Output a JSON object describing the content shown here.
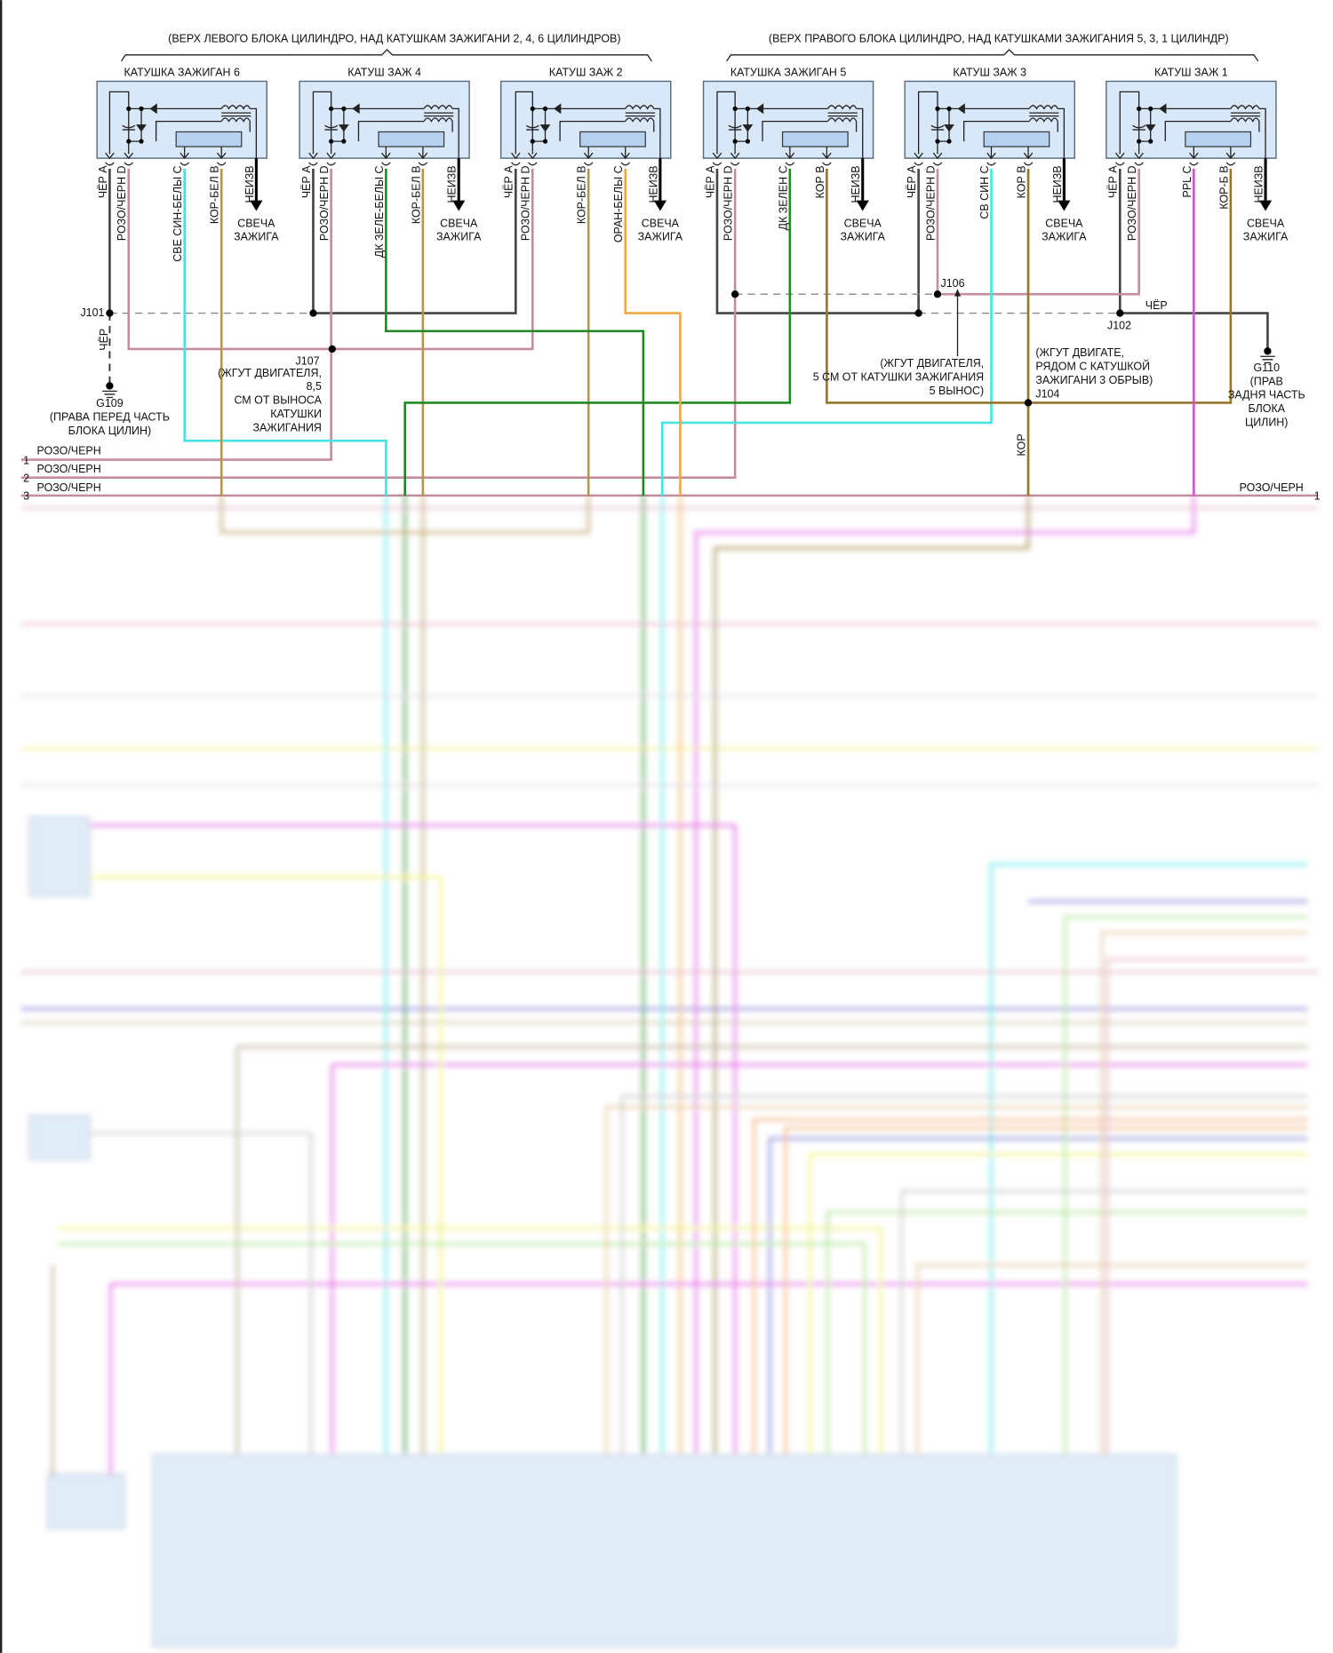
{
  "header": {
    "left_group": "(ВЕРХ ЛЕВОГО БЛОКА ЦИЛИНДРО, НАД КАТУШКАМ ЗАЖИГАНИ 2, 4, 6 ЦИЛИНДРОВ)",
    "right_group": "(ВЕРХ ПРАВОГО БЛОКА ЦИЛИНДРО, НАД КАТУШКАМИ ЗАЖИГАНИЯ 5, 3, 1 ЦИЛИНДР)"
  },
  "spark_plug": [
    "СВЕЧА",
    "ЗАЖИГА"
  ],
  "unknown_label": "НЕИЗВ",
  "coils": [
    {
      "title": "КАТУШКА ЗАЖИГАН 6",
      "pins": [
        {
          "pin": "A",
          "wire": "ЧЁР"
        },
        {
          "pin": "D",
          "wire": "РОЗО/ЧЕРН"
        },
        {
          "pin": "C",
          "wire": "СВЕ СИН-БЕЛЫ"
        },
        {
          "pin": "B",
          "wire": "КОР-БЕЛ"
        }
      ]
    },
    {
      "title": "КАТУШ ЗАЖ 4",
      "pins": [
        {
          "pin": "A",
          "wire": "ЧЁР"
        },
        {
          "pin": "D",
          "wire": "РОЗО/ЧЕРН"
        },
        {
          "pin": "C",
          "wire": "ДК ЗЕЛЕ-БЕЛЫ"
        },
        {
          "pin": "B",
          "wire": "КОР-БЕЛ"
        }
      ]
    },
    {
      "title": "КАТУШ ЗАЖ 2",
      "pins": [
        {
          "pin": "A",
          "wire": "ЧЁР"
        },
        {
          "pin": "D",
          "wire": "РОЗО/ЧЕРН"
        },
        {
          "pin": "B",
          "wire": "КОР-БЕЛ"
        },
        {
          "pin": "C",
          "wire": "ОРАН-БЕЛЫ"
        }
      ]
    },
    {
      "title": "КАТУШКА ЗАЖИГАН 5",
      "pins": [
        {
          "pin": "A",
          "wire": "ЧЁР"
        },
        {
          "pin": "D",
          "wire": "РОЗО/ЧЕРН"
        },
        {
          "pin": "C",
          "wire": "ДК ЗЕЛЕН"
        },
        {
          "pin": "B",
          "wire": "КОР"
        }
      ]
    },
    {
      "title": "КАТУШ ЗАЖ 3",
      "pins": [
        {
          "pin": "A",
          "wire": "ЧЁР"
        },
        {
          "pin": "D",
          "wire": "РОЗО/ЧЕРН"
        },
        {
          "pin": "C",
          "wire": "СВ СИН"
        },
        {
          "pin": "B",
          "wire": "КОР"
        }
      ]
    },
    {
      "title": "КАТУШ ЗАЖ 1",
      "pins": [
        {
          "pin": "A",
          "wire": "ЧЁР"
        },
        {
          "pin": "D",
          "wire": "РОЗО/ЧЕРН"
        },
        {
          "pin": "C",
          "wire": "PPL"
        },
        {
          "pin": "B",
          "wire": "КОР-Б"
        }
      ]
    }
  ],
  "splices": {
    "j101": "J101",
    "j107": "J107",
    "j107_desc": [
      "(ЖГУТ ДВИГАТЕЛЯ,",
      "8,5",
      "СМ ОТ ВЫНОСА",
      "КАТУШКИ",
      "ЗАЖИГАНИЯ"
    ],
    "j106": "J106",
    "j106_desc": [
      "(ЖГУТ ДВИГАТЕЛЯ,",
      "5 СМ ОТ КАТУШКИ ЗАЖИГАНИЯ",
      "5 ВЫНОС)"
    ],
    "j102": "J102",
    "j104": "J104",
    "j104_desc": [
      "(ЖГУТ ДВИГАТЕ,",
      "РЯДОМ С КАТУШКОЙ",
      "ЗАЖИГАНИ 3 ОБРЫВ)"
    ]
  },
  "grounds": {
    "g109": "G109",
    "g109_desc": [
      "(ПРАВА ПЕРЕД ЧАСТЬ",
      "БЛОКА ЦИЛИН)"
    ],
    "g110": "G110",
    "g110_desc": [
      "(ПРАВ",
      "ЗАДНЯ ЧАСТЬ",
      "БЛОКА",
      "ЦИЛИН)"
    ]
  },
  "wire_labels": {
    "ground_left": "ЧЁР",
    "ground_right": "ЧЁР",
    "j104_down": "КОР"
  },
  "rows": [
    {
      "num": "1",
      "label": "РОЗО/ЧЕРН"
    },
    {
      "num": "2",
      "label": "РОЗО/ЧЕРН"
    },
    {
      "num": "3",
      "label": "РОЗО/ЧЕРН"
    }
  ],
  "right_rows": [
    {
      "num": "1",
      "label": "РОЗО/ЧЕРН"
    }
  ],
  "colors": {
    "black_wire": "#444444",
    "pink_wire": "#c58c9c",
    "cyan_wire": "#45e3e3",
    "tan_wire": "#b39650",
    "green_wire": "#1f8a22",
    "orange_wire": "#f2a845",
    "brown_wire": "#94762a",
    "purple_wire": "#e048e0",
    "coil_fill": "#d8e8f8"
  }
}
